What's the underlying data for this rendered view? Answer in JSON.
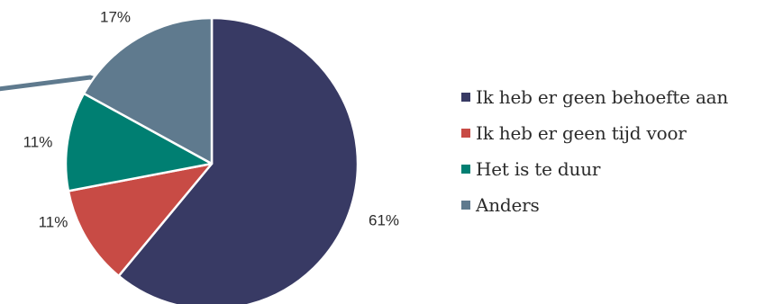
{
  "chart_data": {
    "type": "pie",
    "categories": [
      "Ik heb er geen behoefte aan",
      "Ik heb er geen tijd voor",
      "Het is te duur",
      "Anders"
    ],
    "values": [
      61,
      11,
      11,
      17
    ],
    "labels": [
      "61%",
      "11%",
      "11%",
      "17%"
    ],
    "colors": [
      "#383a64",
      "#c84b45",
      "#007f72",
      "#5f7a8e"
    ],
    "start": "12 o'clock",
    "direction": "clockwise",
    "legend_position": "right"
  }
}
